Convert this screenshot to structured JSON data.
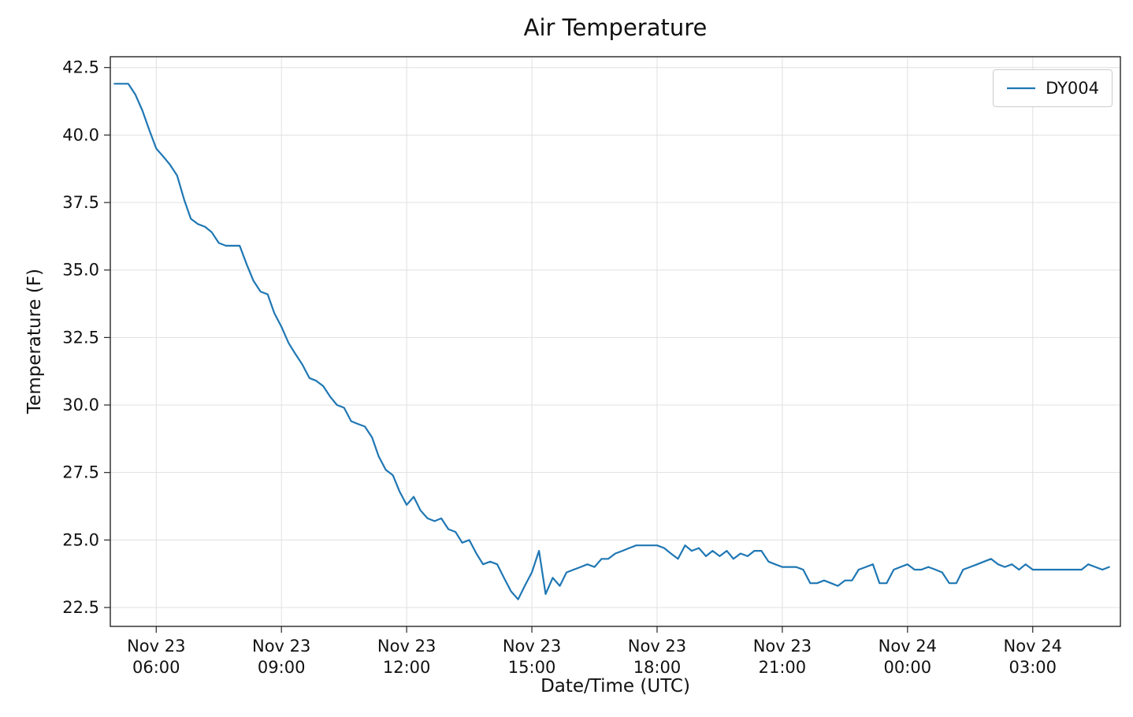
{
  "figure": {
    "title": "Air Temperature",
    "xlabel": "Date/Time (UTC)",
    "ylabel": "Temperature (F)"
  },
  "chart_data": {
    "type": "line",
    "title": "Air Temperature",
    "xlabel": "Date/Time (UTC)",
    "ylabel": "Temperature (F)",
    "grid": true,
    "legend_position": "upper right",
    "x_unit": "hours since Nov 23 00:00 UTC",
    "xlim": [
      4.9,
      29.1
    ],
    "ylim": [
      21.8,
      42.9
    ],
    "x_ticks": [
      {
        "value": 6,
        "line1": "Nov 23",
        "line2": "06:00"
      },
      {
        "value": 9,
        "line1": "Nov 23",
        "line2": "09:00"
      },
      {
        "value": 12,
        "line1": "Nov 23",
        "line2": "12:00"
      },
      {
        "value": 15,
        "line1": "Nov 23",
        "line2": "15:00"
      },
      {
        "value": 18,
        "line1": "Nov 23",
        "line2": "18:00"
      },
      {
        "value": 21,
        "line1": "Nov 23",
        "line2": "21:00"
      },
      {
        "value": 24,
        "line1": "Nov 24",
        "line2": "00:00"
      },
      {
        "value": 27,
        "line1": "Nov 24",
        "line2": "03:00"
      }
    ],
    "y_ticks": [
      {
        "value": 22.5,
        "label": "22.5"
      },
      {
        "value": 25.0,
        "label": "25.0"
      },
      {
        "value": 27.5,
        "label": "27.5"
      },
      {
        "value": 30.0,
        "label": "30.0"
      },
      {
        "value": 32.5,
        "label": "32.5"
      },
      {
        "value": 35.0,
        "label": "35.0"
      },
      {
        "value": 37.5,
        "label": "37.5"
      },
      {
        "value": 40.0,
        "label": "40.0"
      },
      {
        "value": 42.5,
        "label": "42.5"
      }
    ],
    "series": [
      {
        "name": "DY004",
        "color": "#1f77b4",
        "x": [
          5.0,
          5.17,
          5.33,
          5.5,
          5.67,
          5.83,
          6.0,
          6.17,
          6.33,
          6.5,
          6.67,
          6.83,
          7.0,
          7.17,
          7.33,
          7.5,
          7.67,
          7.83,
          8.0,
          8.17,
          8.33,
          8.5,
          8.67,
          8.83,
          9.0,
          9.17,
          9.33,
          9.5,
          9.67,
          9.83,
          10.0,
          10.17,
          10.33,
          10.5,
          10.67,
          10.83,
          11.0,
          11.17,
          11.33,
          11.5,
          11.67,
          11.83,
          12.0,
          12.17,
          12.33,
          12.5,
          12.67,
          12.83,
          13.0,
          13.17,
          13.33,
          13.5,
          13.67,
          13.83,
          14.0,
          14.17,
          14.33,
          14.5,
          14.67,
          14.83,
          15.0,
          15.17,
          15.33,
          15.5,
          15.67,
          15.83,
          16.0,
          16.17,
          16.33,
          16.5,
          16.67,
          16.83,
          17.0,
          17.17,
          17.33,
          17.5,
          17.67,
          17.83,
          18.0,
          18.17,
          18.33,
          18.5,
          18.67,
          18.83,
          19.0,
          19.17,
          19.33,
          19.5,
          19.67,
          19.83,
          20.0,
          20.17,
          20.33,
          20.5,
          20.67,
          20.83,
          21.0,
          21.17,
          21.33,
          21.5,
          21.67,
          21.83,
          22.0,
          22.17,
          22.33,
          22.5,
          22.67,
          22.83,
          23.0,
          23.17,
          23.33,
          23.5,
          23.67,
          23.83,
          24.0,
          24.17,
          24.33,
          24.5,
          24.67,
          24.83,
          25.0,
          25.17,
          25.33,
          25.5,
          25.67,
          25.83,
          26.0,
          26.17,
          26.33,
          26.5,
          26.67,
          26.83,
          27.0,
          27.17,
          27.33,
          27.5,
          27.67,
          27.83,
          28.0,
          28.17,
          28.33,
          28.5,
          28.67,
          28.83
        ],
        "y": [
          41.9,
          41.9,
          41.9,
          41.5,
          40.9,
          40.2,
          39.5,
          39.2,
          38.9,
          38.5,
          37.6,
          36.9,
          36.7,
          36.6,
          36.4,
          36.0,
          35.9,
          35.9,
          35.9,
          35.2,
          34.6,
          34.2,
          34.1,
          33.4,
          32.9,
          32.3,
          31.9,
          31.5,
          31.0,
          30.9,
          30.7,
          30.3,
          30.0,
          29.9,
          29.4,
          29.3,
          29.2,
          28.8,
          28.1,
          27.6,
          27.4,
          26.8,
          26.3,
          26.6,
          26.1,
          25.8,
          25.7,
          25.8,
          25.4,
          25.3,
          24.9,
          25.0,
          24.5,
          24.1,
          24.2,
          24.1,
          23.6,
          23.1,
          22.8,
          23.3,
          23.8,
          24.6,
          23.0,
          23.6,
          23.3,
          23.8,
          23.9,
          24.0,
          24.1,
          24.0,
          24.3,
          24.3,
          24.5,
          24.6,
          24.7,
          24.8,
          24.8,
          24.8,
          24.8,
          24.7,
          24.5,
          24.3,
          24.8,
          24.6,
          24.7,
          24.4,
          24.6,
          24.4,
          24.6,
          24.3,
          24.5,
          24.4,
          24.6,
          24.6,
          24.2,
          24.1,
          24.0,
          24.0,
          24.0,
          23.9,
          23.4,
          23.4,
          23.5,
          23.4,
          23.3,
          23.5,
          23.5,
          23.9,
          24.0,
          24.1,
          23.4,
          23.4,
          23.9,
          24.0,
          24.1,
          23.9,
          23.9,
          24.0,
          23.9,
          23.8,
          23.4,
          23.4,
          23.9,
          24.0,
          24.1,
          24.2,
          24.3,
          24.1,
          24.0,
          24.1,
          23.9,
          24.1,
          23.9,
          23.9,
          23.9,
          23.9,
          23.9,
          23.9,
          23.9,
          23.9,
          24.1,
          24.0,
          23.9,
          24.0
        ]
      }
    ]
  }
}
